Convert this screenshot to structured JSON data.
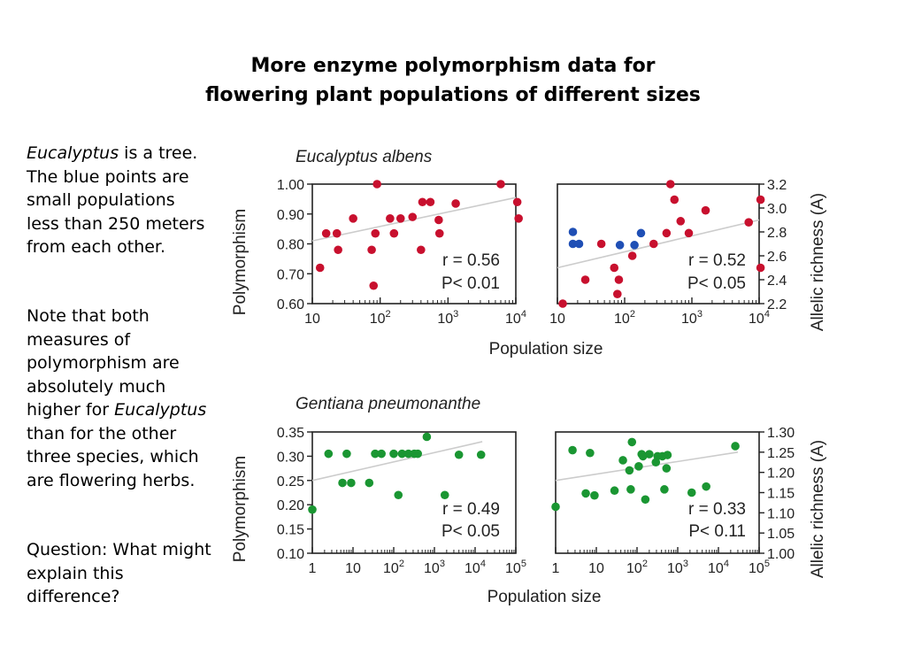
{
  "header": {
    "line1": "More enzyme polymorphism data for",
    "line2": "flowering plant populations of different sizes"
  },
  "sidebar": {
    "para1": {
      "genus": "Eucalyptus",
      "text": " is a tree.  The blue points are small populations less than 250 meters from each other."
    },
    "para2": {
      "pre": "Note that both measures of polymorphism are absolutely much higher for ",
      "genus": "Eucalyptus",
      "post": " than for the other three species, which are flowering herbs."
    },
    "para3": "Question:  What might explain this difference?"
  },
  "labels": {
    "species_top": "Eucalyptus albens",
    "species_bottom": "Gentiana pneumonanthe",
    "ylabel_left": "Polymorphism",
    "ylabel_right": "Allelic richness (A)",
    "xlabel": "Population size"
  },
  "colors": {
    "red": "#c8102e",
    "blue": "#1f4fb5",
    "green": "#1a9632",
    "trend": "#cccccc"
  },
  "chart_data": [
    {
      "id": "euc_poly",
      "type": "scatter",
      "xscale": "log",
      "xlim": [
        10,
        10000
      ],
      "ylim": [
        0.6,
        1.0
      ],
      "yticks": [
        0.6,
        0.7,
        0.8,
        0.9,
        1.0
      ],
      "ytick_labels": [
        "0.60",
        "0.70",
        "0.80",
        "0.90",
        "1.00"
      ],
      "xticks": [
        {
          "base": "10",
          "exp": ""
        },
        {
          "base": "10",
          "exp": "2"
        },
        {
          "base": "10",
          "exp": "3"
        },
        {
          "base": "10",
          "exp": "4"
        }
      ],
      "stat_r": "r = 0.56",
      "stat_p": "P< 0.01",
      "trend": [
        [
          10,
          0.81
        ],
        [
          10000,
          0.955
        ]
      ],
      "points": [
        {
          "x": 13,
          "y": 0.72,
          "c": "red"
        },
        {
          "x": 16,
          "y": 0.835,
          "c": "red"
        },
        {
          "x": 23,
          "y": 0.835,
          "c": "red"
        },
        {
          "x": 24,
          "y": 0.78,
          "c": "red"
        },
        {
          "x": 40,
          "y": 0.885,
          "c": "red"
        },
        {
          "x": 75,
          "y": 0.78,
          "c": "red"
        },
        {
          "x": 80,
          "y": 0.66,
          "c": "red"
        },
        {
          "x": 85,
          "y": 0.835,
          "c": "red"
        },
        {
          "x": 90,
          "y": 1.0,
          "c": "red"
        },
        {
          "x": 140,
          "y": 0.885,
          "c": "red"
        },
        {
          "x": 160,
          "y": 0.835,
          "c": "red"
        },
        {
          "x": 200,
          "y": 0.885,
          "c": "red"
        },
        {
          "x": 300,
          "y": 0.89,
          "c": "red"
        },
        {
          "x": 400,
          "y": 0.78,
          "c": "red"
        },
        {
          "x": 420,
          "y": 0.94,
          "c": "red"
        },
        {
          "x": 550,
          "y": 0.94,
          "c": "red"
        },
        {
          "x": 750,
          "y": 0.835,
          "c": "red"
        },
        {
          "x": 730,
          "y": 0.88,
          "c": "red"
        },
        {
          "x": 1300,
          "y": 0.935,
          "c": "red"
        },
        {
          "x": 6000,
          "y": 1.0,
          "c": "red"
        },
        {
          "x": 10500,
          "y": 0.94,
          "c": "red"
        },
        {
          "x": 11000,
          "y": 0.885,
          "c": "red"
        }
      ]
    },
    {
      "id": "euc_rich",
      "type": "scatter",
      "xscale": "log",
      "xlim": [
        10,
        10000
      ],
      "ylim": [
        2.2,
        3.2
      ],
      "yticks": [
        2.2,
        2.4,
        2.6,
        2.8,
        3.0,
        3.2
      ],
      "ytick_labels": [
        "2.2",
        "2.4",
        "2.6",
        "2.8",
        "3.0",
        "3.2"
      ],
      "xticks": [
        {
          "base": "10",
          "exp": ""
        },
        {
          "base": "10",
          "exp": "2"
        },
        {
          "base": "10",
          "exp": "3"
        },
        {
          "base": "10",
          "exp": "4"
        }
      ],
      "stat_r": "r = 0.52",
      "stat_p": "P< 0.05",
      "trend": [
        [
          10,
          2.5
        ],
        [
          10000,
          2.9
        ]
      ],
      "points": [
        {
          "x": 12,
          "y": 2.2,
          "c": "red"
        },
        {
          "x": 17,
          "y": 2.8,
          "c": "blue"
        },
        {
          "x": 17,
          "y": 2.7,
          "c": "blue"
        },
        {
          "x": 21,
          "y": 2.7,
          "c": "blue"
        },
        {
          "x": 26,
          "y": 2.4,
          "c": "red"
        },
        {
          "x": 45,
          "y": 2.7,
          "c": "red"
        },
        {
          "x": 70,
          "y": 2.5,
          "c": "red"
        },
        {
          "x": 78,
          "y": 2.28,
          "c": "red"
        },
        {
          "x": 82,
          "y": 2.4,
          "c": "red"
        },
        {
          "x": 85,
          "y": 2.69,
          "c": "blue"
        },
        {
          "x": 130,
          "y": 2.6,
          "c": "red"
        },
        {
          "x": 140,
          "y": 2.69,
          "c": "blue"
        },
        {
          "x": 175,
          "y": 2.79,
          "c": "blue"
        },
        {
          "x": 270,
          "y": 2.7,
          "c": "red"
        },
        {
          "x": 420,
          "y": 2.79,
          "c": "red"
        },
        {
          "x": 480,
          "y": 3.2,
          "c": "red"
        },
        {
          "x": 550,
          "y": 3.07,
          "c": "red"
        },
        {
          "x": 680,
          "y": 2.89,
          "c": "red"
        },
        {
          "x": 900,
          "y": 2.79,
          "c": "red"
        },
        {
          "x": 1600,
          "y": 2.98,
          "c": "red"
        },
        {
          "x": 7000,
          "y": 2.88,
          "c": "red"
        },
        {
          "x": 10500,
          "y": 3.07,
          "c": "red"
        },
        {
          "x": 10500,
          "y": 2.5,
          "c": "red"
        }
      ]
    },
    {
      "id": "gen_poly",
      "type": "scatter",
      "xscale": "log",
      "xlim": [
        1,
        100000
      ],
      "ylim": [
        0.1,
        0.35
      ],
      "yticks": [
        0.1,
        0.15,
        0.2,
        0.25,
        0.3,
        0.35
      ],
      "ytick_labels": [
        "0.10",
        "0.15",
        "0.20",
        "0.25",
        "0.30",
        "0.35"
      ],
      "xticks": [
        {
          "base": "1",
          "exp": ""
        },
        {
          "base": "10",
          "exp": ""
        },
        {
          "base": "10",
          "exp": "2"
        },
        {
          "base": "10",
          "exp": "3"
        },
        {
          "base": "10",
          "exp": "4"
        },
        {
          "base": "10",
          "exp": "5"
        }
      ],
      "stat_r": "r = 0.49",
      "stat_p": "P< 0.05",
      "trend": [
        [
          1,
          0.25
        ],
        [
          15000,
          0.33
        ]
      ],
      "points": [
        {
          "x": 1,
          "y": 0.19,
          "c": "green"
        },
        {
          "x": 2.5,
          "y": 0.305,
          "c": "green"
        },
        {
          "x": 5.5,
          "y": 0.245,
          "c": "green"
        },
        {
          "x": 7,
          "y": 0.305,
          "c": "green"
        },
        {
          "x": 9,
          "y": 0.245,
          "c": "green"
        },
        {
          "x": 25,
          "y": 0.245,
          "c": "green"
        },
        {
          "x": 35,
          "y": 0.305,
          "c": "green"
        },
        {
          "x": 50,
          "y": 0.305,
          "c": "green"
        },
        {
          "x": 100,
          "y": 0.305,
          "c": "green"
        },
        {
          "x": 130,
          "y": 0.22,
          "c": "green"
        },
        {
          "x": 160,
          "y": 0.305,
          "c": "green"
        },
        {
          "x": 230,
          "y": 0.305,
          "c": "green"
        },
        {
          "x": 320,
          "y": 0.305,
          "c": "green"
        },
        {
          "x": 390,
          "y": 0.305,
          "c": "green"
        },
        {
          "x": 650,
          "y": 0.34,
          "c": "green"
        },
        {
          "x": 1800,
          "y": 0.22,
          "c": "green"
        },
        {
          "x": 4000,
          "y": 0.303,
          "c": "green"
        },
        {
          "x": 14000,
          "y": 0.303,
          "c": "green"
        }
      ]
    },
    {
      "id": "gen_rich",
      "type": "scatter",
      "xscale": "log",
      "xlim": [
        1,
        100000
      ],
      "ylim": [
        1.0,
        1.3
      ],
      "yticks": [
        1.0,
        1.05,
        1.1,
        1.15,
        1.2,
        1.25,
        1.3
      ],
      "ytick_labels": [
        "1.00",
        "1.05",
        "1.10",
        "1.15",
        "1.20",
        "1.25",
        "1.30"
      ],
      "xticks": [
        {
          "base": "1",
          "exp": ""
        },
        {
          "base": "10",
          "exp": ""
        },
        {
          "base": "10",
          "exp": "2"
        },
        {
          "base": "10",
          "exp": "3"
        },
        {
          "base": "10",
          "exp": "4"
        },
        {
          "base": "10",
          "exp": "5"
        }
      ],
      "stat_r": "r = 0.33",
      "stat_p": "P< 0.11",
      "trend": [
        [
          1,
          1.18
        ],
        [
          30000,
          1.25
        ]
      ],
      "points": [
        {
          "x": 1,
          "y": 1.115,
          "c": "green"
        },
        {
          "x": 2.6,
          "y": 1.255,
          "c": "green"
        },
        {
          "x": 5.5,
          "y": 1.148,
          "c": "green"
        },
        {
          "x": 7,
          "y": 1.248,
          "c": "green"
        },
        {
          "x": 9,
          "y": 1.143,
          "c": "green"
        },
        {
          "x": 28,
          "y": 1.155,
          "c": "green"
        },
        {
          "x": 45,
          "y": 1.23,
          "c": "green"
        },
        {
          "x": 65,
          "y": 1.205,
          "c": "green"
        },
        {
          "x": 70,
          "y": 1.158,
          "c": "green"
        },
        {
          "x": 75,
          "y": 1.275,
          "c": "green"
        },
        {
          "x": 110,
          "y": 1.215,
          "c": "green"
        },
        {
          "x": 130,
          "y": 1.245,
          "c": "green"
        },
        {
          "x": 140,
          "y": 1.24,
          "c": "green"
        },
        {
          "x": 160,
          "y": 1.133,
          "c": "green"
        },
        {
          "x": 200,
          "y": 1.245,
          "c": "green"
        },
        {
          "x": 290,
          "y": 1.225,
          "c": "green"
        },
        {
          "x": 320,
          "y": 1.24,
          "c": "green"
        },
        {
          "x": 420,
          "y": 1.24,
          "c": "green"
        },
        {
          "x": 470,
          "y": 1.158,
          "c": "green"
        },
        {
          "x": 530,
          "y": 1.21,
          "c": "green"
        },
        {
          "x": 560,
          "y": 1.243,
          "c": "green"
        },
        {
          "x": 2200,
          "y": 1.15,
          "c": "green"
        },
        {
          "x": 5000,
          "y": 1.165,
          "c": "green"
        },
        {
          "x": 26000,
          "y": 1.265,
          "c": "green"
        }
      ]
    }
  ]
}
